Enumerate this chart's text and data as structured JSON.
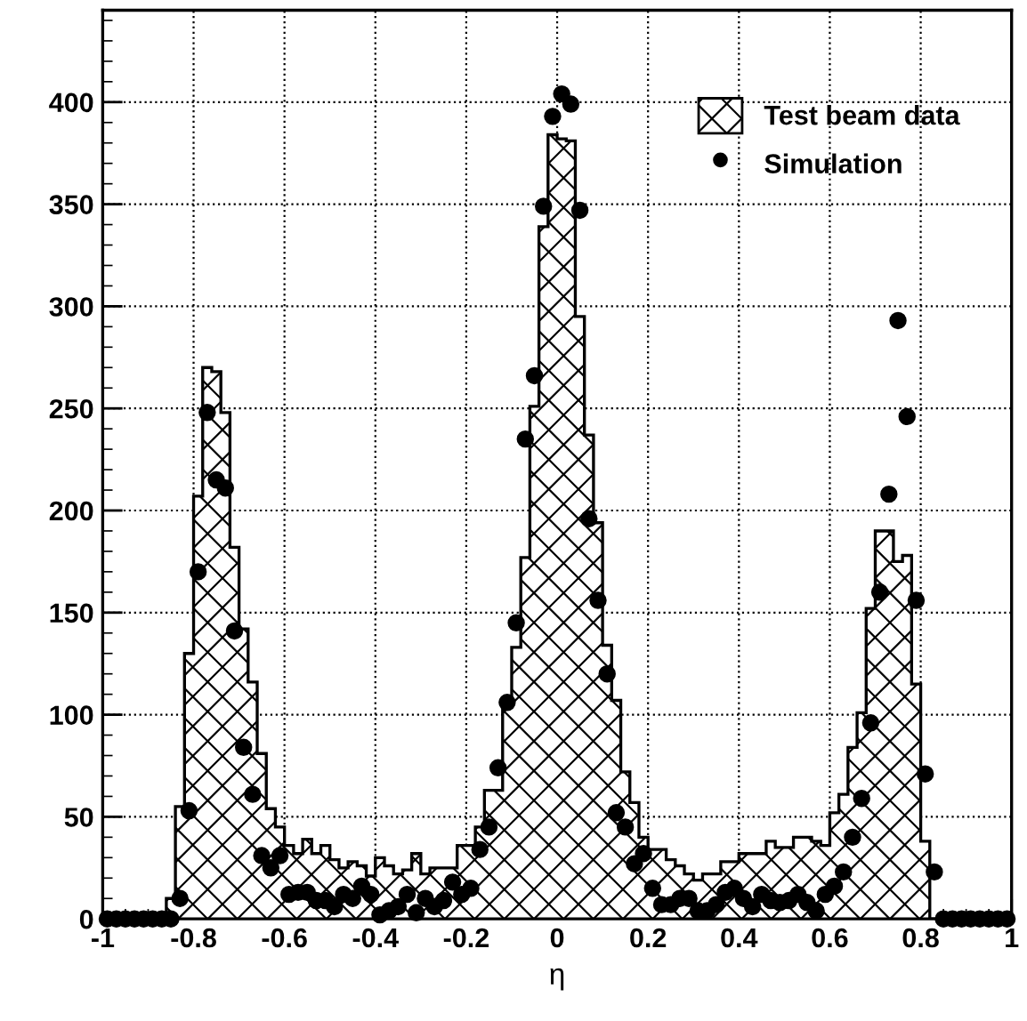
{
  "chart_data": {
    "type": "histogram",
    "xlabel": "η",
    "bins": [
      -1.0,
      -0.98,
      -0.96,
      -0.94,
      -0.92,
      -0.9,
      -0.88,
      -0.86,
      -0.84,
      -0.82,
      -0.8,
      -0.78,
      -0.76,
      -0.74,
      -0.72,
      -0.7,
      -0.68,
      -0.66,
      -0.64,
      -0.62,
      -0.6,
      -0.58,
      -0.56,
      -0.54,
      -0.52,
      -0.5,
      -0.48,
      -0.46,
      -0.44,
      -0.42,
      -0.4,
      -0.38,
      -0.36,
      -0.34,
      -0.32,
      -0.3,
      -0.28,
      -0.26,
      -0.24,
      -0.22,
      -0.2,
      -0.18,
      -0.16,
      -0.14,
      -0.12,
      -0.1,
      -0.08,
      -0.06,
      -0.04,
      -0.02,
      0.0,
      0.02,
      0.04,
      0.06,
      0.08,
      0.1,
      0.12,
      0.14,
      0.16,
      0.18,
      0.2,
      0.22,
      0.24,
      0.26,
      0.28,
      0.3,
      0.32,
      0.34,
      0.36,
      0.38,
      0.4,
      0.42,
      0.44,
      0.46,
      0.48,
      0.5,
      0.52,
      0.54,
      0.56,
      0.58,
      0.6,
      0.62,
      0.64,
      0.66,
      0.68,
      0.7,
      0.72,
      0.74,
      0.76,
      0.78,
      0.8,
      0.82,
      0.84,
      0.86,
      0.88,
      0.9,
      0.92,
      0.94,
      0.96,
      0.98,
      1.0
    ],
    "series": [
      {
        "name": "Test beam data",
        "color": "#000000",
        "values": [
          0,
          0,
          0,
          0,
          0,
          0,
          0,
          10,
          55,
          130,
          207,
          270,
          268,
          248,
          182,
          142,
          116,
          81,
          54,
          45,
          36,
          32,
          39,
          32,
          36,
          29,
          25,
          28,
          26,
          21,
          30,
          26,
          22,
          24,
          32,
          22,
          25,
          25,
          25,
          36,
          36,
          45,
          63,
          63,
          104,
          133,
          177,
          251,
          339,
          384,
          382,
          381,
          295,
          237,
          194,
          134,
          107,
          72,
          57,
          40,
          34,
          34,
          29,
          26,
          22,
          19,
          22,
          22,
          28,
          28,
          32,
          32,
          32,
          38,
          35,
          35,
          40,
          40,
          38,
          36,
          52,
          61,
          84,
          101,
          152,
          190,
          190,
          175,
          178,
          115,
          38,
          0,
          0,
          0,
          0,
          0,
          0,
          0,
          0,
          0
        ]
      },
      {
        "name": "Simulation",
        "type": "scatter",
        "color": "#000000",
        "marker": "circle",
        "x": [
          -0.99,
          -0.97,
          -0.95,
          -0.93,
          -0.91,
          -0.89,
          -0.87,
          -0.85,
          -0.83,
          -0.81,
          -0.79,
          -0.77,
          -0.75,
          -0.73,
          -0.71,
          -0.69,
          -0.67,
          -0.65,
          -0.63,
          -0.61,
          -0.59,
          -0.57,
          -0.55,
          -0.53,
          -0.51,
          -0.49,
          -0.47,
          -0.45,
          -0.43,
          -0.41,
          -0.39,
          -0.37,
          -0.35,
          -0.33,
          -0.31,
          -0.29,
          -0.27,
          -0.25,
          -0.23,
          -0.21,
          -0.19,
          -0.17,
          -0.15,
          -0.13,
          -0.11,
          -0.09,
          -0.07,
          -0.05,
          -0.03,
          -0.01,
          0.01,
          0.03,
          0.05,
          0.07,
          0.09,
          0.11,
          0.13,
          0.15,
          0.17,
          0.19,
          0.21,
          0.23,
          0.25,
          0.27,
          0.29,
          0.31,
          0.33,
          0.35,
          0.37,
          0.39,
          0.41,
          0.43,
          0.45,
          0.47,
          0.49,
          0.51,
          0.53,
          0.55,
          0.57,
          0.59,
          0.61,
          0.63,
          0.65,
          0.67,
          0.69,
          0.71,
          0.73,
          0.75,
          0.77,
          0.79,
          0.81,
          0.83,
          0.85,
          0.87,
          0.89,
          0.91,
          0.93,
          0.95,
          0.97,
          0.99
        ],
        "values": [
          0,
          0,
          0,
          0,
          0,
          0,
          0,
          0,
          10,
          53,
          170,
          248,
          215,
          211,
          141,
          84,
          61,
          31,
          25,
          31,
          12,
          13,
          13,
          9,
          9,
          6,
          12,
          10,
          16,
          12,
          2,
          4,
          6,
          12,
          3,
          10,
          6,
          9,
          18,
          12,
          15,
          34,
          45,
          74,
          106,
          145,
          235,
          266,
          349,
          393,
          404,
          399,
          347,
          196,
          156,
          120,
          52,
          45,
          27,
          32,
          15,
          7,
          7,
          10,
          10,
          4,
          4,
          7,
          13,
          15,
          10,
          6,
          12,
          9,
          8,
          9,
          12,
          8,
          4,
          12,
          16,
          23,
          40,
          59,
          96,
          160,
          208,
          293,
          246,
          156,
          71,
          23,
          0,
          0,
          0,
          0,
          0,
          0,
          0,
          0
        ]
      }
    ],
    "xlim": [
      -1,
      1
    ],
    "ylim": [
      0,
      445
    ],
    "xticks": [
      {
        "value": -1,
        "label": "-1"
      },
      {
        "value": -0.8,
        "label": "-0.8"
      },
      {
        "value": -0.6,
        "label": "-0.6"
      },
      {
        "value": -0.4,
        "label": "-0.4"
      },
      {
        "value": -0.2,
        "label": "-0.2"
      },
      0,
      {
        "value": 0.2,
        "label": "0.2"
      },
      {
        "value": 0.4,
        "label": "0.4"
      },
      {
        "value": 0.6,
        "label": "0.6"
      },
      {
        "value": 0.8,
        "label": "0.8"
      },
      1
    ],
    "yticks": [
      0,
      50,
      100,
      150,
      200,
      250,
      300,
      350,
      400
    ],
    "grid": true,
    "legend": "top right"
  }
}
